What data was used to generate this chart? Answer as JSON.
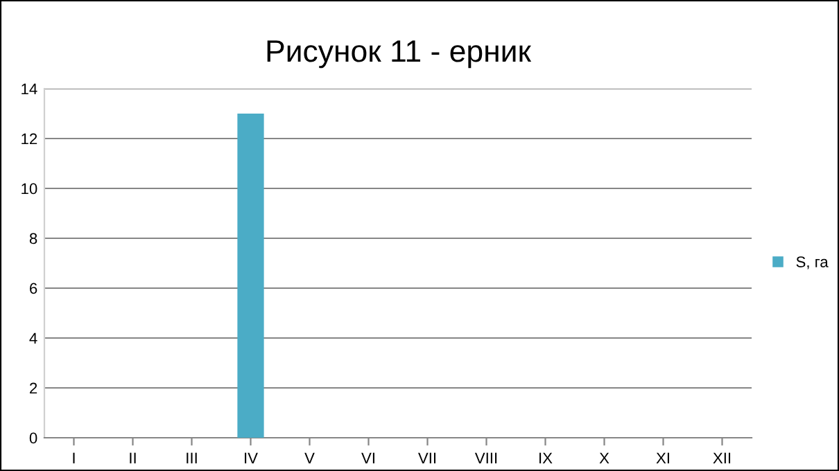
{
  "chart_data": {
    "type": "bar",
    "title": "Рисунок 11 - ерник",
    "categories": [
      "I",
      "II",
      "III",
      "IV",
      "V",
      "VI",
      "VII",
      "VIII",
      "IX",
      "X",
      "XI",
      "XII"
    ],
    "series": [
      {
        "name": "S, га",
        "color": "#4bacc6",
        "values": [
          null,
          null,
          null,
          13,
          null,
          null,
          null,
          null,
          null,
          null,
          null,
          null
        ]
      }
    ],
    "ylim": [
      0,
      14
    ],
    "yticks": [
      0,
      2,
      4,
      6,
      8,
      10,
      12,
      14
    ],
    "grid": "y",
    "legend": "right"
  }
}
